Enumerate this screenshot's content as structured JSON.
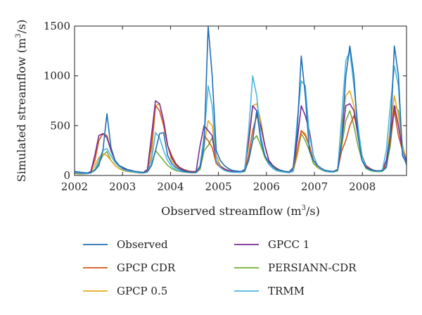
{
  "chart_data": {
    "type": "line",
    "xlabel": "Observed streamflow (m",
    "xlabel_sup": "3",
    "xlabel_tail": "/s)",
    "ylabel": "Simulated streamflow (m",
    "ylabel_sup": "3",
    "ylabel_tail": "/s)",
    "xlim": [
      2002,
      2008.92
    ],
    "ylim": [
      0,
      1500
    ],
    "x_ticks": [
      2002,
      2003,
      2004,
      2005,
      2006,
      2007,
      2008
    ],
    "x_tick_labels": [
      "2002",
      "2003",
      "2004",
      "2005",
      "2006",
      "2007",
      "2008"
    ],
    "y_ticks": [
      0,
      500,
      1000,
      1500
    ],
    "y_tick_labels": [
      "0",
      "500",
      "1000",
      "1500"
    ],
    "grid": false,
    "legend_placement": "bottom",
    "colors": {
      "Observed": "#1f6fb5",
      "GPCP CDR": "#d4541c",
      "GPCP 0.5": "#e7a91f",
      "GPCC 1": "#7a2c90",
      "PERSIANN-CDR": "#72ad35",
      "TRMM": "#4cb6e0"
    },
    "series": [
      {
        "name": "Observed",
        "values": [
          40,
          35,
          30,
          25,
          30,
          50,
          100,
          250,
          620,
          280,
          150,
          100,
          80,
          60,
          50,
          40,
          35,
          30,
          40,
          100,
          250,
          420,
          430,
          200,
          120,
          80,
          60,
          40,
          35,
          30,
          30,
          80,
          300,
          1500,
          1000,
          250,
          150,
          100,
          70,
          50,
          45,
          40,
          45,
          150,
          350,
          650,
          350,
          200,
          130,
          90,
          60,
          50,
          40,
          35,
          80,
          450,
          1200,
          800,
          250,
          150,
          100,
          70,
          50,
          45,
          40,
          60,
          350,
          1000,
          1300,
          1000,
          400,
          150,
          80,
          60,
          50,
          45,
          50,
          80,
          400,
          1300,
          1000,
          200,
          120
        ]
      },
      {
        "name": "GPCP CDR",
        "values": [
          30,
          25,
          20,
          20,
          40,
          150,
          350,
          420,
          400,
          250,
          150,
          100,
          80,
          60,
          50,
          40,
          35,
          30,
          60,
          300,
          700,
          650,
          500,
          300,
          200,
          120,
          80,
          60,
          45,
          40,
          40,
          100,
          400,
          350,
          280,
          120,
          80,
          60,
          50,
          40,
          35,
          35,
          50,
          200,
          450,
          600,
          500,
          300,
          150,
          100,
          70,
          50,
          40,
          35,
          60,
          250,
          450,
          400,
          300,
          150,
          100,
          60,
          45,
          40,
          40,
          60,
          250,
          350,
          500,
          600,
          450,
          200,
          100,
          70,
          50,
          45,
          50,
          100,
          350,
          650,
          400,
          250,
          150
        ]
      },
      {
        "name": "GPCP 0.5",
        "values": [
          25,
          20,
          18,
          20,
          30,
          100,
          180,
          220,
          200,
          150,
          100,
          70,
          50,
          40,
          35,
          30,
          25,
          25,
          40,
          200,
          700,
          720,
          550,
          300,
          150,
          100,
          60,
          45,
          35,
          30,
          30,
          80,
          300,
          550,
          500,
          200,
          100,
          70,
          50,
          40,
          35,
          35,
          60,
          300,
          700,
          720,
          550,
          300,
          150,
          90,
          60,
          45,
          40,
          35,
          50,
          200,
          450,
          420,
          300,
          150,
          90,
          55,
          45,
          40,
          40,
          60,
          500,
          800,
          850,
          700,
          400,
          200,
          80,
          60,
          50,
          45,
          50,
          120,
          500,
          800,
          600,
          300,
          150
        ]
      },
      {
        "name": "GPCC 1",
        "values": [
          28,
          22,
          20,
          22,
          35,
          200,
          400,
          420,
          380,
          250,
          150,
          100,
          70,
          55,
          45,
          38,
          32,
          30,
          60,
          400,
          750,
          720,
          550,
          300,
          180,
          110,
          75,
          55,
          42,
          35,
          35,
          300,
          500,
          450,
          400,
          150,
          90,
          65,
          50,
          40,
          35,
          35,
          60,
          350,
          700,
          650,
          500,
          300,
          150,
          95,
          65,
          50,
          40,
          35,
          55,
          350,
          700,
          600,
          450,
          200,
          100,
          60,
          45,
          40,
          40,
          60,
          350,
          700,
          720,
          650,
          400,
          200,
          90,
          65,
          50,
          45,
          50,
          150,
          400,
          700,
          500,
          250,
          140
        ]
      },
      {
        "name": "PERSIANN-CDR",
        "values": [
          20,
          15,
          15,
          18,
          25,
          60,
          120,
          200,
          240,
          150,
          100,
          70,
          50,
          40,
          35,
          30,
          25,
          25,
          35,
          100,
          250,
          200,
          150,
          100,
          70,
          50,
          40,
          35,
          30,
          28,
          28,
          60,
          250,
          300,
          380,
          150,
          90,
          60,
          45,
          38,
          32,
          32,
          40,
          150,
          350,
          400,
          300,
          180,
          110,
          75,
          50,
          40,
          35,
          30,
          40,
          200,
          420,
          350,
          250,
          120,
          80,
          55,
          40,
          35,
          35,
          45,
          300,
          550,
          650,
          500,
          300,
          150,
          70,
          50,
          40,
          38,
          40,
          80,
          300,
          700,
          650,
          300,
          150
        ]
      },
      {
        "name": "TRMM",
        "values": [
          30,
          25,
          22,
          20,
          25,
          60,
          150,
          250,
          270,
          200,
          130,
          90,
          60,
          45,
          38,
          32,
          28,
          25,
          35,
          150,
          430,
          380,
          250,
          150,
          90,
          60,
          45,
          38,
          32,
          30,
          30,
          100,
          400,
          900,
          700,
          150,
          80,
          50,
          38,
          32,
          30,
          30,
          50,
          450,
          1000,
          800,
          400,
          200,
          110,
          70,
          45,
          38,
          32,
          28,
          45,
          550,
          950,
          900,
          400,
          200,
          100,
          60,
          42,
          35,
          35,
          55,
          600,
          1150,
          1250,
          900,
          500,
          200,
          80,
          55,
          45,
          40,
          45,
          250,
          700,
          1100,
          900,
          250,
          100
        ]
      }
    ]
  }
}
